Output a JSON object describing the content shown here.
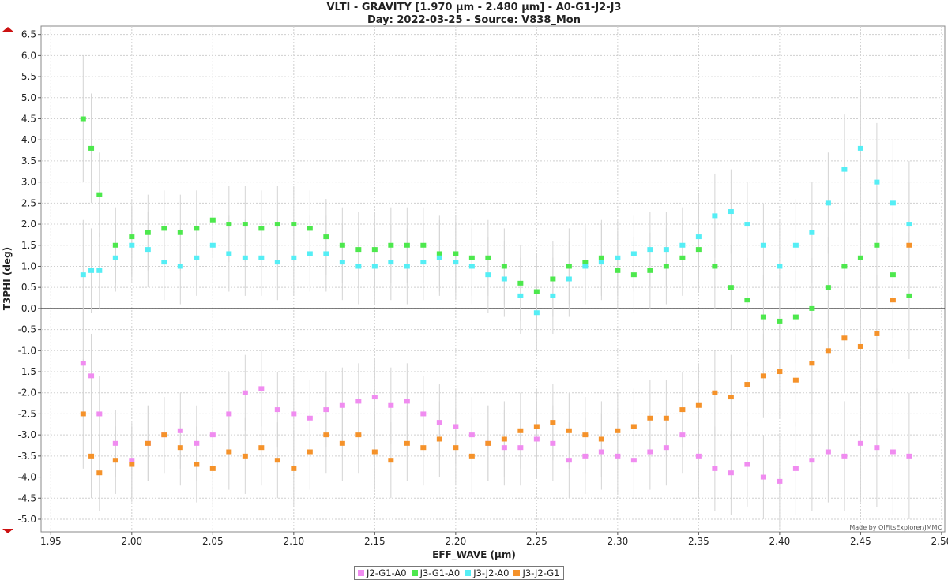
{
  "chart_data": {
    "type": "scatter",
    "title": "VLTI - GRAVITY [1.970 µm - 2.480 µm] - A0-G1-J2-J3",
    "subtitle": "Day: 2022-03-25 - Source: V838_Mon",
    "xlabel": "EFF_WAVE (µm)",
    "ylabel": "T3PHI (deg)",
    "xlim": [
      1.944,
      2.502
    ],
    "ylim": [
      -5.3,
      6.7
    ],
    "xticks": [
      "1.95",
      "2.00",
      "2.05",
      "2.10",
      "2.15",
      "2.20",
      "2.25",
      "2.30",
      "2.35",
      "2.40",
      "2.45",
      "2.50"
    ],
    "yticks": [
      "-5.0",
      "-4.5",
      "-4.0",
      "-3.5",
      "-3.0",
      "-2.5",
      "-2.0",
      "-1.5",
      "-1.0",
      "-0.5",
      "0.0",
      "0.5",
      "1.0",
      "1.5",
      "2.0",
      "2.5",
      "3.0",
      "3.5",
      "4.0",
      "4.5",
      "5.0",
      "5.5",
      "6.0",
      "6.5"
    ],
    "grid": true,
    "zero_line": true,
    "error_bars": true,
    "legend_position": "bottom-center",
    "watermark": "Made by OIFitsExplorer/JMMC",
    "series": [
      {
        "name": "J2-G1-A0",
        "color": "#f08cf0",
        "x": [
          1.97,
          1.975,
          1.98,
          1.99,
          2.0,
          2.01,
          2.02,
          2.03,
          2.04,
          2.05,
          2.06,
          2.07,
          2.08,
          2.09,
          2.1,
          2.11,
          2.12,
          2.13,
          2.14,
          2.15,
          2.16,
          2.17,
          2.18,
          2.19,
          2.2,
          2.21,
          2.22,
          2.23,
          2.24,
          2.25,
          2.26,
          2.27,
          2.28,
          2.29,
          2.3,
          2.31,
          2.32,
          2.33,
          2.34,
          2.35,
          2.36,
          2.37,
          2.38,
          2.39,
          2.4,
          2.41,
          2.42,
          2.43,
          2.44,
          2.45,
          2.46,
          2.47,
          2.48
        ],
        "y": [
          -1.3,
          -1.6,
          -2.5,
          -3.2,
          -3.6,
          -3.2,
          -3.0,
          -2.9,
          -3.2,
          -3.0,
          -2.5,
          -2.0,
          -1.9,
          -2.4,
          -2.5,
          -2.6,
          -2.4,
          -2.3,
          -2.2,
          -2.1,
          -2.3,
          -2.2,
          -2.5,
          -2.7,
          -2.8,
          -3.0,
          -3.2,
          -3.3,
          -3.3,
          -3.1,
          -3.2,
          -3.6,
          -3.5,
          -3.4,
          -3.5,
          -3.6,
          -3.4,
          -3.3,
          -3.0,
          -3.5,
          -3.8,
          -3.9,
          -3.7,
          -4.0,
          -4.1,
          -3.8,
          -3.6,
          -3.4,
          -3.5,
          -3.2,
          -3.3,
          -3.4,
          -3.5
        ],
        "err": [
          1.3,
          1.0,
          0.9,
          0.8,
          0.9,
          0.9,
          0.9,
          0.9,
          0.9,
          0.9,
          1.0,
          0.9,
          0.9,
          0.9,
          0.9,
          0.9,
          0.9,
          0.9,
          0.9,
          0.9,
          0.9,
          0.9,
          0.9,
          0.9,
          0.9,
          0.9,
          0.9,
          0.9,
          0.9,
          0.9,
          0.9,
          0.9,
          0.9,
          0.9,
          0.9,
          0.9,
          0.9,
          0.9,
          0.9,
          1.0,
          1.0,
          1.0,
          1.0,
          1.0,
          1.1,
          1.1,
          1.2,
          1.2,
          1.3,
          1.4,
          1.4,
          1.5,
          1.5
        ]
      },
      {
        "name": "J3-G1-A0",
        "color": "#4de84d",
        "x": [
          1.97,
          1.975,
          1.98,
          1.99,
          2.0,
          2.01,
          2.02,
          2.03,
          2.04,
          2.05,
          2.06,
          2.07,
          2.08,
          2.09,
          2.1,
          2.11,
          2.12,
          2.13,
          2.14,
          2.15,
          2.16,
          2.17,
          2.18,
          2.19,
          2.2,
          2.21,
          2.22,
          2.23,
          2.24,
          2.25,
          2.26,
          2.27,
          2.28,
          2.29,
          2.3,
          2.31,
          2.32,
          2.33,
          2.34,
          2.35,
          2.36,
          2.37,
          2.38,
          2.39,
          2.4,
          2.41,
          2.42,
          2.43,
          2.44,
          2.45,
          2.46,
          2.47,
          2.48
        ],
        "y": [
          4.5,
          3.8,
          2.7,
          1.5,
          1.7,
          1.8,
          1.9,
          1.8,
          1.9,
          2.1,
          2.0,
          2.0,
          1.9,
          2.0,
          2.0,
          1.9,
          1.7,
          1.5,
          1.4,
          1.4,
          1.5,
          1.5,
          1.5,
          1.3,
          1.3,
          1.2,
          1.2,
          1.0,
          0.6,
          0.4,
          0.7,
          1.0,
          1.1,
          1.2,
          0.9,
          0.8,
          0.9,
          1.0,
          1.2,
          1.4,
          1.0,
          0.5,
          0.2,
          -0.2,
          -0.3,
          -0.2,
          0.0,
          0.5,
          1.0,
          1.2,
          1.5,
          0.8,
          0.3
        ],
        "err": [
          1.5,
          1.3,
          1.0,
          0.9,
          0.9,
          0.9,
          0.9,
          0.9,
          0.9,
          0.9,
          0.9,
          0.9,
          0.9,
          0.9,
          0.9,
          0.9,
          0.9,
          0.9,
          0.9,
          0.9,
          0.9,
          0.9,
          0.9,
          0.9,
          0.9,
          0.9,
          0.9,
          0.9,
          0.9,
          0.9,
          0.9,
          0.9,
          0.9,
          0.9,
          0.9,
          0.9,
          0.9,
          0.9,
          0.9,
          1.0,
          1.0,
          1.0,
          1.0,
          1.0,
          1.1,
          1.1,
          1.2,
          1.2,
          1.3,
          1.4,
          1.4,
          1.5,
          1.5
        ]
      },
      {
        "name": "J3-J2-A0",
        "color": "#55eef5",
        "x": [
          1.97,
          1.975,
          1.98,
          1.99,
          2.0,
          2.01,
          2.02,
          2.03,
          2.04,
          2.05,
          2.06,
          2.07,
          2.08,
          2.09,
          2.1,
          2.11,
          2.12,
          2.13,
          2.14,
          2.15,
          2.16,
          2.17,
          2.18,
          2.19,
          2.2,
          2.21,
          2.22,
          2.23,
          2.24,
          2.25,
          2.26,
          2.27,
          2.28,
          2.29,
          2.3,
          2.31,
          2.32,
          2.33,
          2.34,
          2.35,
          2.36,
          2.37,
          2.38,
          2.39,
          2.4,
          2.41,
          2.42,
          2.43,
          2.44,
          2.45,
          2.46,
          2.47,
          2.48
        ],
        "y": [
          0.8,
          0.9,
          0.9,
          1.2,
          1.5,
          1.4,
          1.1,
          1.0,
          1.2,
          1.5,
          1.3,
          1.2,
          1.2,
          1.1,
          1.2,
          1.3,
          1.3,
          1.1,
          1.0,
          1.0,
          1.1,
          1.0,
          1.1,
          1.2,
          1.1,
          1.0,
          0.8,
          0.7,
          0.3,
          -0.1,
          0.3,
          0.7,
          1.0,
          1.1,
          1.2,
          1.3,
          1.4,
          1.4,
          1.5,
          1.7,
          2.2,
          2.3,
          2.0,
          1.5,
          1.0,
          1.5,
          1.8,
          2.5,
          3.3,
          3.8,
          3.0,
          2.5,
          2.0
        ],
        "err": [
          1.3,
          1.0,
          0.9,
          0.8,
          0.9,
          0.9,
          0.9,
          0.9,
          0.9,
          0.9,
          0.9,
          0.9,
          0.9,
          0.9,
          0.9,
          0.9,
          0.9,
          0.9,
          0.9,
          0.9,
          0.9,
          0.9,
          0.9,
          0.9,
          0.9,
          0.9,
          0.9,
          0.9,
          0.9,
          0.9,
          0.9,
          0.9,
          0.9,
          0.9,
          0.9,
          0.9,
          0.9,
          0.9,
          0.9,
          1.0,
          1.0,
          1.0,
          1.0,
          1.0,
          1.1,
          1.1,
          1.2,
          1.2,
          1.3,
          1.4,
          1.4,
          1.5,
          1.5
        ]
      },
      {
        "name": "J3-J2-G1",
        "color": "#f5922a",
        "x": [
          1.97,
          1.975,
          1.98,
          1.99,
          2.0,
          2.01,
          2.02,
          2.03,
          2.04,
          2.05,
          2.06,
          2.07,
          2.08,
          2.09,
          2.1,
          2.11,
          2.12,
          2.13,
          2.14,
          2.15,
          2.16,
          2.17,
          2.18,
          2.19,
          2.2,
          2.21,
          2.22,
          2.23,
          2.24,
          2.25,
          2.26,
          2.27,
          2.28,
          2.29,
          2.3,
          2.31,
          2.32,
          2.33,
          2.34,
          2.35,
          2.36,
          2.37,
          2.38,
          2.39,
          2.4,
          2.41,
          2.42,
          2.43,
          2.44,
          2.45,
          2.46,
          2.47,
          2.48
        ],
        "y": [
          -2.5,
          -3.5,
          -3.9,
          -3.6,
          -3.7,
          -3.2,
          -3.0,
          -3.3,
          -3.7,
          -3.8,
          -3.4,
          -3.5,
          -3.3,
          -3.6,
          -3.8,
          -3.4,
          -3.0,
          -3.2,
          -3.0,
          -3.4,
          -3.6,
          -3.2,
          -3.3,
          -3.1,
          -3.3,
          -3.5,
          -3.2,
          -3.1,
          -2.9,
          -2.8,
          -2.7,
          -2.9,
          -3.0,
          -3.1,
          -2.9,
          -2.8,
          -2.6,
          -2.6,
          -2.4,
          -2.3,
          -2.0,
          -2.1,
          -1.8,
          -1.6,
          -1.5,
          -1.7,
          -1.3,
          -1.0,
          -0.7,
          -0.9,
          -0.6,
          0.2,
          1.5
        ],
        "err": [
          1.3,
          1.0,
          0.9,
          0.8,
          0.9,
          0.9,
          0.9,
          0.9,
          0.9,
          0.9,
          0.9,
          0.9,
          0.9,
          0.9,
          0.9,
          0.9,
          0.9,
          0.9,
          0.9,
          0.9,
          0.9,
          0.9,
          0.9,
          0.9,
          0.9,
          0.9,
          0.9,
          0.9,
          0.9,
          0.9,
          0.9,
          0.9,
          0.9,
          0.9,
          0.9,
          0.9,
          0.9,
          0.9,
          0.9,
          1.0,
          1.0,
          1.0,
          1.0,
          1.0,
          1.1,
          1.1,
          1.2,
          1.2,
          1.3,
          1.4,
          1.4,
          1.5,
          1.5
        ]
      }
    ]
  }
}
